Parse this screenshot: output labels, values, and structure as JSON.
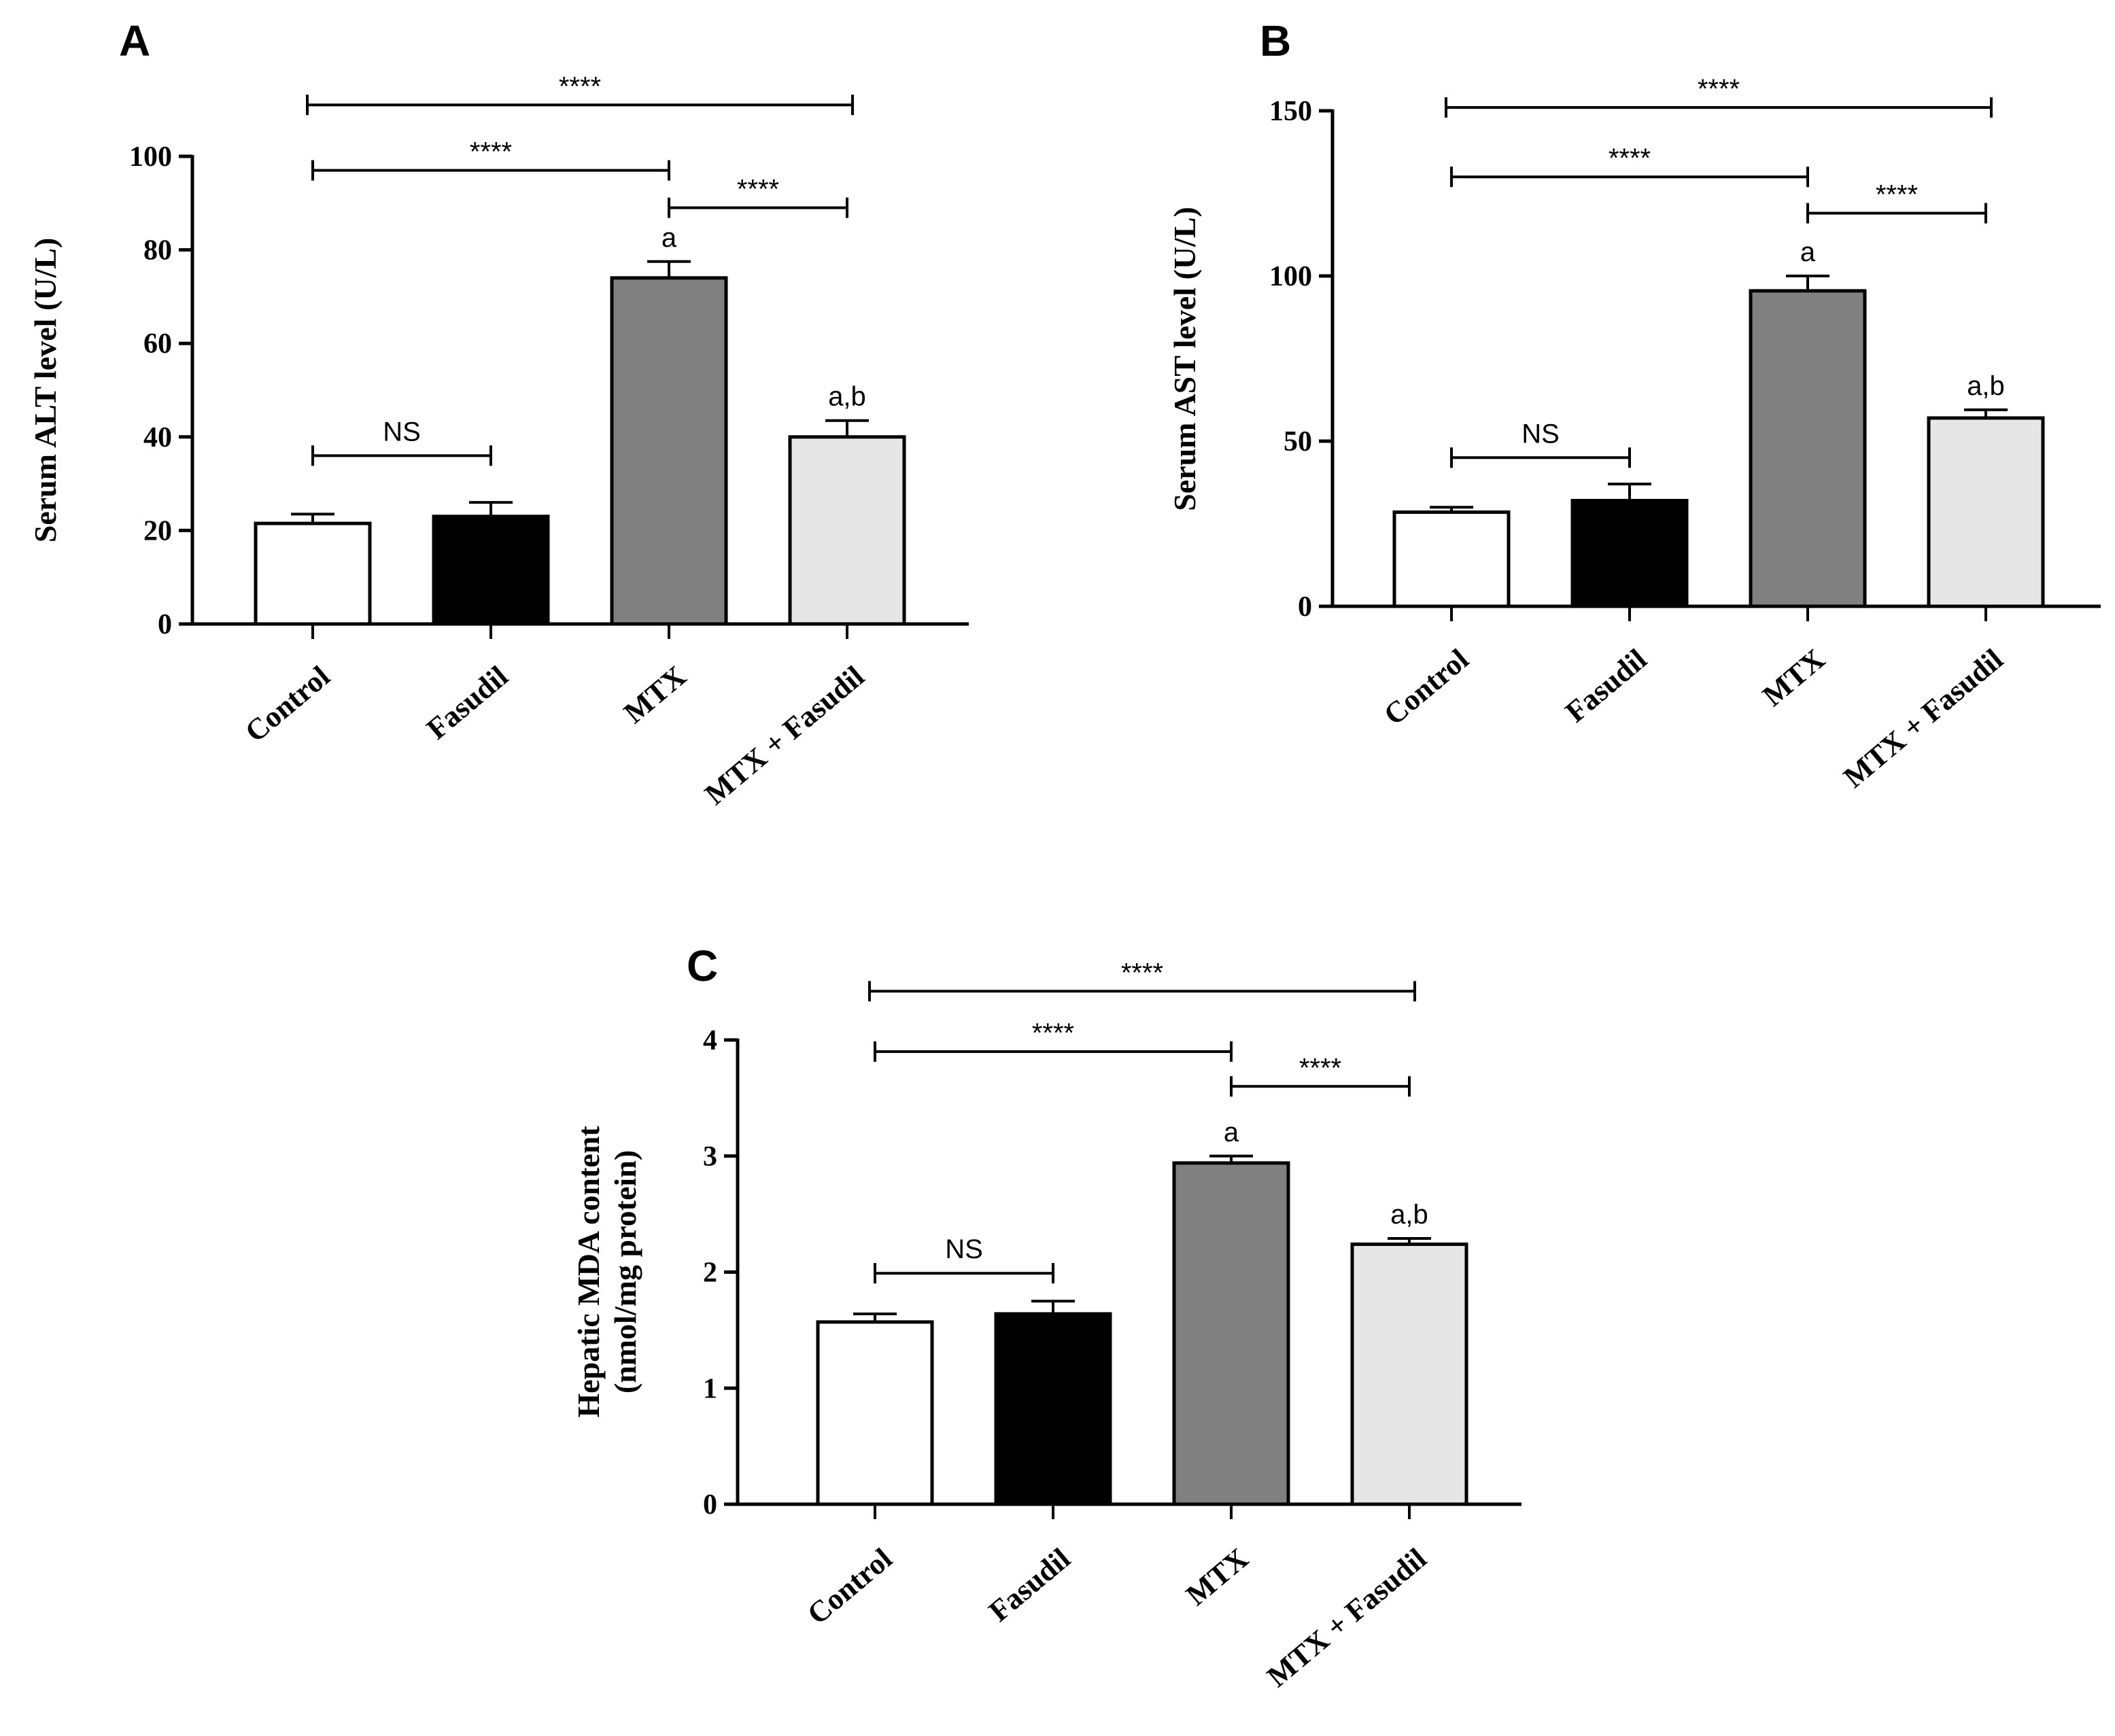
{
  "chart_data": [
    {
      "panel": "A",
      "type": "bar",
      "categories": [
        "Control",
        "Fasudil",
        "MTX",
        "MTX + Fasudil"
      ],
      "values": [
        21.5,
        23,
        74,
        40
      ],
      "errors": [
        2,
        3,
        3.5,
        3.5
      ],
      "bar_colors": [
        "#ffffff",
        "#000000",
        "#808080",
        "#e6e6e6"
      ],
      "group_letters": [
        "",
        "",
        "a",
        "a,b"
      ],
      "ylabel": [
        "Serum ALT level (U/L)"
      ],
      "ylim": [
        0,
        100
      ],
      "yticks": [
        "0",
        "20",
        "40",
        "60",
        "80",
        "100"
      ],
      "comparisons": [
        {
          "from": 0,
          "to": 3,
          "label": "****",
          "y": 111
        },
        {
          "from": 0,
          "to": 2,
          "label": "****",
          "y": 97
        },
        {
          "from": 2,
          "to": 3,
          "label": "****",
          "y": 89
        },
        {
          "from": 0,
          "to": 1,
          "label": "NS",
          "y": 36
        }
      ]
    },
    {
      "panel": "B",
      "type": "bar",
      "categories": [
        "Control",
        "Fasudil",
        "MTX",
        "MTX + Fasudil"
      ],
      "values": [
        28.5,
        32,
        95.5,
        57
      ],
      "errors": [
        1.5,
        5,
        4.5,
        2.5
      ],
      "bar_colors": [
        "#ffffff",
        "#000000",
        "#808080",
        "#e6e6e6"
      ],
      "group_letters": [
        "",
        "",
        "a",
        "a,b"
      ],
      "ylabel": [
        "Serum AST level (U/L)"
      ],
      "ylim": [
        0,
        150
      ],
      "yticks": [
        "0",
        "50",
        "100",
        "150"
      ],
      "comparisons": [
        {
          "from": 0,
          "to": 3,
          "label": "****",
          "y": 151
        },
        {
          "from": 0,
          "to": 2,
          "label": "****",
          "y": 130
        },
        {
          "from": 2,
          "to": 3,
          "label": "****",
          "y": 119
        },
        {
          "from": 0,
          "to": 1,
          "label": "NS",
          "y": 45
        }
      ]
    },
    {
      "panel": "C",
      "type": "bar",
      "categories": [
        "Control",
        "Fasudil",
        "MTX",
        "MTX + Fasudil"
      ],
      "values": [
        1.57,
        1.64,
        2.94,
        2.24
      ],
      "errors": [
        0.07,
        0.11,
        0.06,
        0.05
      ],
      "bar_colors": [
        "#ffffff",
        "#000000",
        "#808080",
        "#e6e6e6"
      ],
      "group_letters": [
        "",
        "",
        "a",
        "a,b"
      ],
      "ylabel": [
        "Hepatic MDA content",
        "(nmol/mg protein)"
      ],
      "ylim": [
        0,
        4
      ],
      "yticks": [
        "0",
        "1",
        "2",
        "3",
        "4"
      ],
      "comparisons": [
        {
          "from": 0,
          "to": 3,
          "label": "****",
          "y": 4.42
        },
        {
          "from": 0,
          "to": 2,
          "label": "****",
          "y": 3.9
        },
        {
          "from": 2,
          "to": 3,
          "label": "****",
          "y": 3.6
        },
        {
          "from": 0,
          "to": 1,
          "label": "NS",
          "y": 1.99
        }
      ]
    }
  ]
}
